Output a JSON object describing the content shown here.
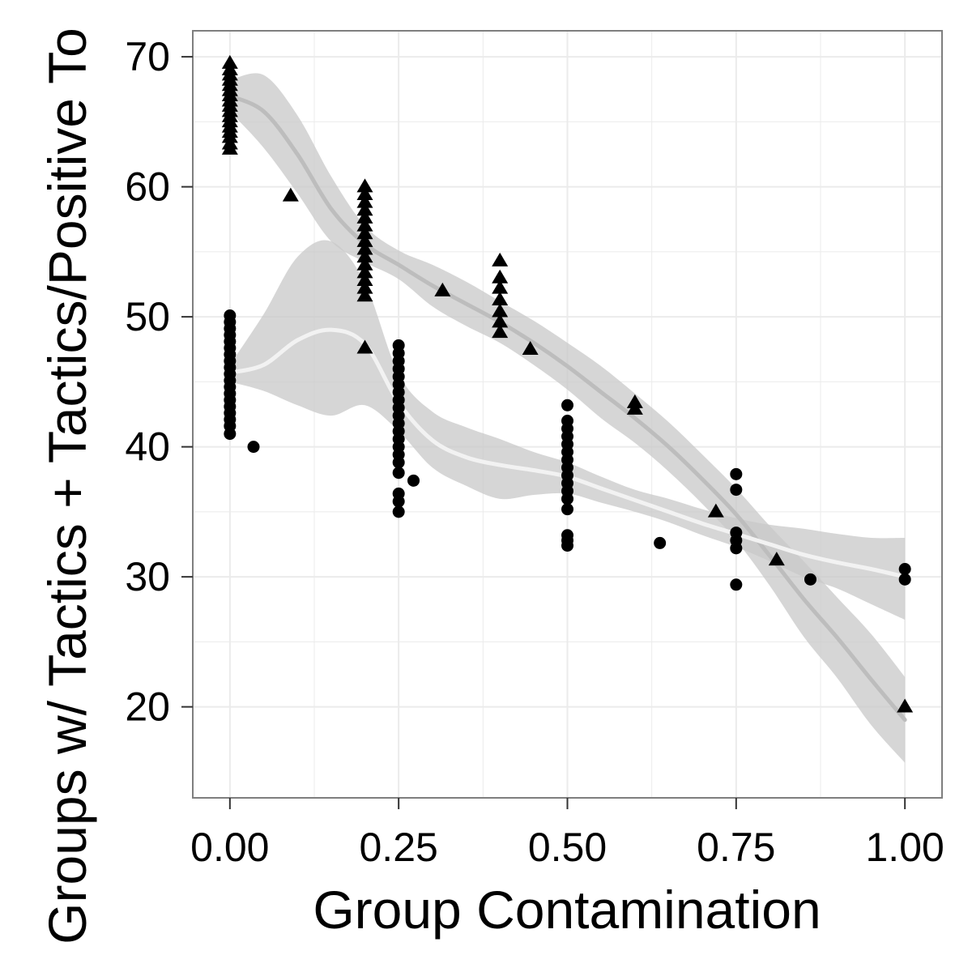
{
  "chart_data": {
    "type": "scatter",
    "title": "",
    "xlabel": "Group Contamination",
    "ylabel": "Groups w/ Tactics + Tactics/Positive To",
    "xlim": [
      -0.055,
      1.055
    ],
    "ylim": [
      13,
      72.0
    ],
    "xticks": [
      0.0,
      0.25,
      0.5,
      0.75,
      1.0
    ],
    "xtick_labels": [
      "0.00",
      "0.25",
      "0.50",
      "0.75",
      "1.00"
    ],
    "yticks": [
      20,
      30,
      40,
      50,
      60,
      70
    ],
    "ytick_labels": [
      "20",
      "30",
      "40",
      "50",
      "60",
      "70"
    ],
    "grid": true,
    "legend": "none",
    "colors": {
      "panel_bg": "#ffffff",
      "grid": "#ebebeb",
      "border": "#7f7f7f",
      "points": "#000000",
      "ribbon": "#c8c8c8",
      "triangle_fit": "#bdbdbd",
      "circle_fit": "#f2f2f2"
    },
    "series": [
      {
        "marker": "triangle",
        "points": [
          [
            0.0,
            69.5
          ],
          [
            0.0,
            69.0
          ],
          [
            0.0,
            68.6
          ],
          [
            0.0,
            68.2
          ],
          [
            0.0,
            67.8
          ],
          [
            0.0,
            67.4
          ],
          [
            0.0,
            67.0
          ],
          [
            0.0,
            66.6
          ],
          [
            0.0,
            66.2
          ],
          [
            0.0,
            65.8
          ],
          [
            0.0,
            65.4
          ],
          [
            0.0,
            65.0
          ],
          [
            0.0,
            64.6
          ],
          [
            0.0,
            64.2
          ],
          [
            0.0,
            63.8
          ],
          [
            0.0,
            63.3
          ],
          [
            0.0,
            62.9
          ],
          [
            0.09,
            59.3
          ],
          [
            0.2,
            60.0
          ],
          [
            0.2,
            59.4
          ],
          [
            0.2,
            58.8
          ],
          [
            0.2,
            58.2
          ],
          [
            0.2,
            57.6
          ],
          [
            0.2,
            57.0
          ],
          [
            0.2,
            56.4
          ],
          [
            0.2,
            55.8
          ],
          [
            0.2,
            55.2
          ],
          [
            0.2,
            54.6
          ],
          [
            0.2,
            54.0
          ],
          [
            0.2,
            53.4
          ],
          [
            0.2,
            52.8
          ],
          [
            0.2,
            52.2
          ],
          [
            0.2,
            51.6
          ],
          [
            0.2,
            47.6
          ],
          [
            0.315,
            52.0
          ],
          [
            0.4,
            54.3
          ],
          [
            0.4,
            53.0
          ],
          [
            0.4,
            52.2
          ],
          [
            0.4,
            51.3
          ],
          [
            0.4,
            50.4
          ],
          [
            0.4,
            49.6
          ],
          [
            0.4,
            48.8
          ],
          [
            0.445,
            47.5
          ],
          [
            0.6,
            43.4
          ],
          [
            0.6,
            42.9
          ],
          [
            0.72,
            35.0
          ],
          [
            0.81,
            31.3
          ],
          [
            1.0,
            20.0
          ]
        ],
        "fit": [
          [
            0.0,
            67.0
          ],
          [
            0.05,
            65.8
          ],
          [
            0.1,
            62.5
          ],
          [
            0.15,
            58.3
          ],
          [
            0.2,
            55.6
          ],
          [
            0.25,
            54.0
          ],
          [
            0.3,
            52.4
          ],
          [
            0.35,
            51.0
          ],
          [
            0.4,
            49.6
          ],
          [
            0.45,
            48.0
          ],
          [
            0.5,
            46.2
          ],
          [
            0.55,
            44.2
          ],
          [
            0.6,
            42.2
          ],
          [
            0.65,
            40.0
          ],
          [
            0.7,
            37.5
          ],
          [
            0.75,
            34.8
          ],
          [
            0.8,
            31.6
          ],
          [
            0.85,
            28.3
          ],
          [
            0.9,
            25.3
          ],
          [
            0.95,
            22.1
          ],
          [
            1.0,
            19.0
          ]
        ],
        "band_upper": [
          [
            0.0,
            68.2
          ],
          [
            0.05,
            68.6
          ],
          [
            0.1,
            65.5
          ],
          [
            0.15,
            60.8
          ],
          [
            0.2,
            57.0
          ],
          [
            0.25,
            55.1
          ],
          [
            0.3,
            54.0
          ],
          [
            0.35,
            52.7
          ],
          [
            0.4,
            51.2
          ],
          [
            0.45,
            49.7
          ],
          [
            0.5,
            48.0
          ],
          [
            0.55,
            46.2
          ],
          [
            0.6,
            44.1
          ],
          [
            0.65,
            41.9
          ],
          [
            0.7,
            39.4
          ],
          [
            0.75,
            36.8
          ],
          [
            0.8,
            33.9
          ],
          [
            0.85,
            31.2
          ],
          [
            0.9,
            28.4
          ],
          [
            0.95,
            25.6
          ],
          [
            1.0,
            22.3
          ]
        ],
        "band_lower": [
          [
            0.0,
            65.8
          ],
          [
            0.05,
            63.0
          ],
          [
            0.1,
            59.5
          ],
          [
            0.15,
            55.8
          ],
          [
            0.2,
            54.2
          ],
          [
            0.25,
            52.9
          ],
          [
            0.3,
            50.8
          ],
          [
            0.35,
            49.3
          ],
          [
            0.4,
            48.0
          ],
          [
            0.45,
            46.3
          ],
          [
            0.5,
            44.4
          ],
          [
            0.55,
            42.2
          ],
          [
            0.6,
            40.3
          ],
          [
            0.65,
            38.1
          ],
          [
            0.7,
            35.6
          ],
          [
            0.75,
            32.8
          ],
          [
            0.8,
            29.3
          ],
          [
            0.85,
            25.4
          ],
          [
            0.9,
            22.2
          ],
          [
            0.95,
            18.6
          ],
          [
            1.0,
            15.7
          ]
        ]
      },
      {
        "marker": "circle",
        "points": [
          [
            0.0,
            50.1
          ],
          [
            0.0,
            49.6
          ],
          [
            0.0,
            49.1
          ],
          [
            0.0,
            48.6
          ],
          [
            0.0,
            48.1
          ],
          [
            0.0,
            47.6
          ],
          [
            0.0,
            47.1
          ],
          [
            0.0,
            46.6
          ],
          [
            0.0,
            46.1
          ],
          [
            0.0,
            45.6
          ],
          [
            0.0,
            45.1
          ],
          [
            0.0,
            44.6
          ],
          [
            0.0,
            44.1
          ],
          [
            0.0,
            43.6
          ],
          [
            0.0,
            43.1
          ],
          [
            0.0,
            42.6
          ],
          [
            0.0,
            42.1
          ],
          [
            0.0,
            41.6
          ],
          [
            0.0,
            41.0
          ],
          [
            0.035,
            40.0
          ],
          [
            0.25,
            47.8
          ],
          [
            0.25,
            47.2
          ],
          [
            0.25,
            46.6
          ],
          [
            0.25,
            46.0
          ],
          [
            0.25,
            45.4
          ],
          [
            0.25,
            44.8
          ],
          [
            0.25,
            44.2
          ],
          [
            0.25,
            43.6
          ],
          [
            0.25,
            43.0
          ],
          [
            0.25,
            42.4
          ],
          [
            0.25,
            41.8
          ],
          [
            0.25,
            41.2
          ],
          [
            0.25,
            40.6
          ],
          [
            0.25,
            40.0
          ],
          [
            0.25,
            39.4
          ],
          [
            0.25,
            38.8
          ],
          [
            0.25,
            38.0
          ],
          [
            0.25,
            36.4
          ],
          [
            0.25,
            35.8
          ],
          [
            0.25,
            35.0
          ],
          [
            0.272,
            37.4
          ],
          [
            0.5,
            43.2
          ],
          [
            0.5,
            42.0
          ],
          [
            0.5,
            41.4
          ],
          [
            0.5,
            40.8
          ],
          [
            0.5,
            40.2
          ],
          [
            0.5,
            39.6
          ],
          [
            0.5,
            39.0
          ],
          [
            0.5,
            38.4
          ],
          [
            0.5,
            37.8
          ],
          [
            0.5,
            37.2
          ],
          [
            0.5,
            36.6
          ],
          [
            0.5,
            36.0
          ],
          [
            0.5,
            35.2
          ],
          [
            0.5,
            33.2
          ],
          [
            0.5,
            32.8
          ],
          [
            0.5,
            32.4
          ],
          [
            0.637,
            32.6
          ],
          [
            0.75,
            37.9
          ],
          [
            0.75,
            36.7
          ],
          [
            0.75,
            33.4
          ],
          [
            0.75,
            32.8
          ],
          [
            0.75,
            32.2
          ],
          [
            0.75,
            29.4
          ],
          [
            0.86,
            29.8
          ],
          [
            1.0,
            30.6
          ],
          [
            1.0,
            29.8
          ]
        ],
        "fit": [
          [
            0.0,
            45.7
          ],
          [
            0.05,
            46.3
          ],
          [
            0.1,
            48.2
          ],
          [
            0.15,
            49.0
          ],
          [
            0.2,
            47.9
          ],
          [
            0.25,
            43.4
          ],
          [
            0.3,
            40.5
          ],
          [
            0.35,
            39.2
          ],
          [
            0.4,
            38.6
          ],
          [
            0.45,
            38.2
          ],
          [
            0.5,
            37.7
          ],
          [
            0.55,
            36.8
          ],
          [
            0.6,
            35.9
          ],
          [
            0.65,
            35.0
          ],
          [
            0.7,
            34.1
          ],
          [
            0.75,
            33.3
          ],
          [
            0.8,
            32.5
          ],
          [
            0.85,
            31.7
          ],
          [
            0.9,
            31.1
          ],
          [
            0.95,
            30.6
          ],
          [
            1.0,
            30.0
          ]
        ],
        "band_upper": [
          [
            0.0,
            46.3
          ],
          [
            0.05,
            50.2
          ],
          [
            0.1,
            54.6
          ],
          [
            0.15,
            55.8
          ],
          [
            0.2,
            52.6
          ],
          [
            0.25,
            45.6
          ],
          [
            0.3,
            42.7
          ],
          [
            0.35,
            41.5
          ],
          [
            0.4,
            40.6
          ],
          [
            0.45,
            39.6
          ],
          [
            0.5,
            38.8
          ],
          [
            0.55,
            37.7
          ],
          [
            0.6,
            36.7
          ],
          [
            0.65,
            36.0
          ],
          [
            0.7,
            35.2
          ],
          [
            0.75,
            34.5
          ],
          [
            0.8,
            34.0
          ],
          [
            0.85,
            33.7
          ],
          [
            0.9,
            33.3
          ],
          [
            0.95,
            33.0
          ],
          [
            1.0,
            33.0
          ]
        ],
        "band_lower": [
          [
            0.0,
            45.0
          ],
          [
            0.05,
            44.3
          ],
          [
            0.1,
            43.2
          ],
          [
            0.15,
            42.4
          ],
          [
            0.2,
            43.2
          ],
          [
            0.25,
            41.2
          ],
          [
            0.3,
            38.4
          ],
          [
            0.35,
            37.0
          ],
          [
            0.4,
            36.0
          ],
          [
            0.45,
            36.3
          ],
          [
            0.5,
            36.4
          ],
          [
            0.55,
            35.7
          ],
          [
            0.6,
            35.0
          ],
          [
            0.65,
            34.2
          ],
          [
            0.7,
            33.2
          ],
          [
            0.75,
            32.3
          ],
          [
            0.8,
            31.2
          ],
          [
            0.85,
            30.0
          ],
          [
            0.9,
            29.1
          ],
          [
            0.95,
            27.9
          ],
          [
            1.0,
            26.7
          ]
        ]
      }
    ]
  }
}
